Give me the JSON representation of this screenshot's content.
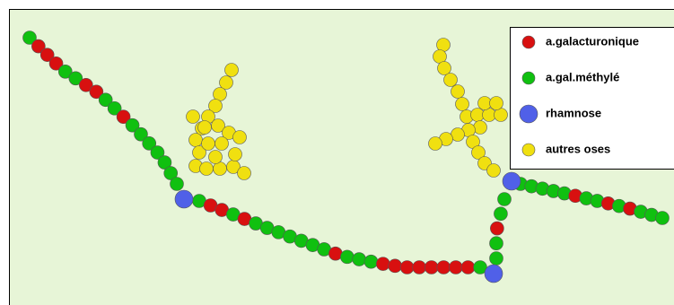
{
  "legend": {
    "items": [
      {
        "label": "a.galacturonique",
        "color": "#d81010"
      },
      {
        "label": "a.gal.méthylé",
        "color": "#10c010"
      },
      {
        "label": "rhamnose",
        "color": "#5060e8"
      },
      {
        "label": "autres oses",
        "color": "#f0e010"
      }
    ]
  }
}
